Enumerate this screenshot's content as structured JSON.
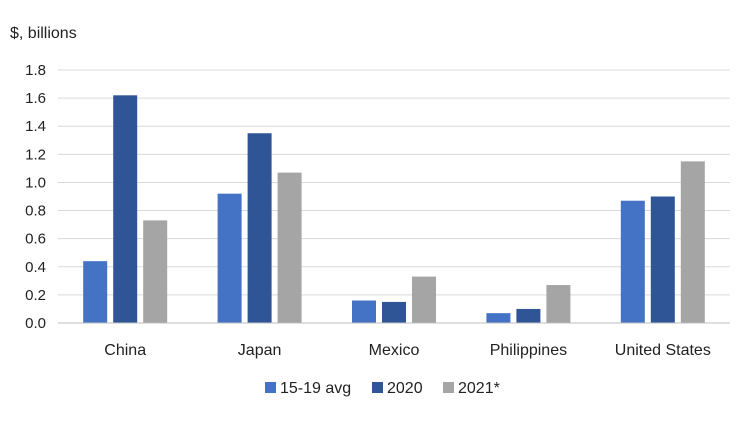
{
  "chart_data": {
    "type": "bar",
    "title": "",
    "unit_label": "$, billions",
    "xlabel": "",
    "ylabel": "",
    "ylim": [
      0,
      1.8
    ],
    "yticks": [
      "0.0",
      "0.2",
      "0.4",
      "0.6",
      "0.8",
      "1.0",
      "1.2",
      "1.4",
      "1.6",
      "1.8"
    ],
    "grid": true,
    "legend_position": "bottom",
    "categories": [
      "China",
      "Japan",
      "Mexico",
      "Philippines",
      "United States"
    ],
    "series": [
      {
        "name": "15-19 avg",
        "color": "#4472c4",
        "values": [
          0.44,
          0.92,
          0.16,
          0.07,
          0.87
        ]
      },
      {
        "name": "2020",
        "color": "#2f5597",
        "values": [
          1.62,
          1.35,
          0.15,
          0.1,
          0.9
        ]
      },
      {
        "name": "2021*",
        "color": "#a5a5a5",
        "values": [
          0.73,
          1.07,
          0.33,
          0.27,
          1.15
        ]
      }
    ]
  }
}
